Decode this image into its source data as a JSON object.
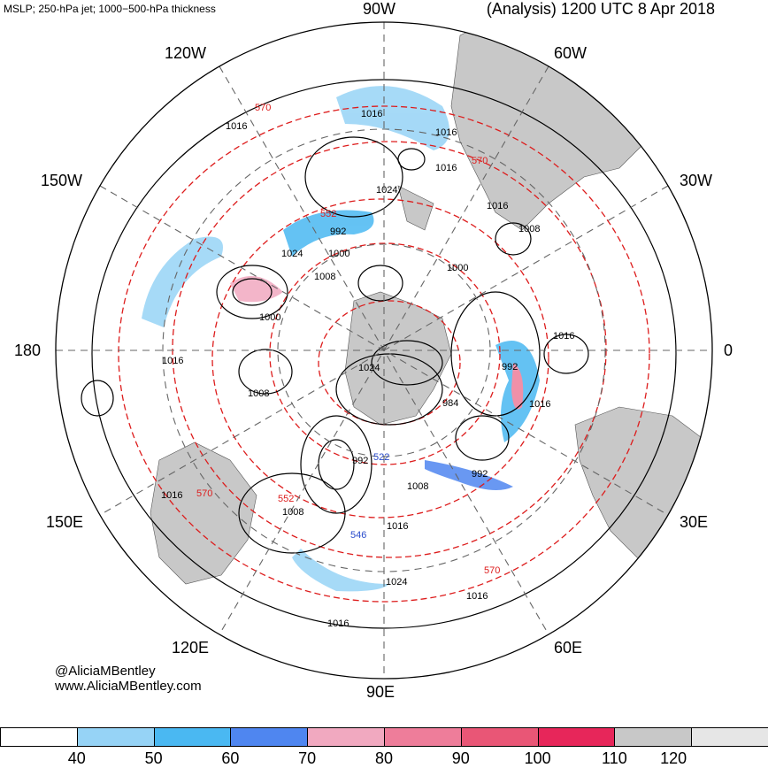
{
  "header": {
    "left_title": "MSLP; 250-hPa jet; 1000−500-hPa thickness",
    "right_title": "(Analysis) 1200 UTC 8 Apr 2018"
  },
  "longitude_labels": {
    "n90w": "90W",
    "n120w": "120W",
    "n60w": "60W",
    "n150w": "150W",
    "n30w": "30W",
    "n180": "180",
    "n0": "0",
    "n150e": "150E",
    "n30e": "30E",
    "n120e": "120E",
    "n60e": "60E",
    "n90e": "90E"
  },
  "credits": {
    "handle": "@AliciaMBentley",
    "website": "www.AliciaMBentley.com"
  },
  "contour_labels": {
    "mslp": [
      "1016",
      "1016",
      "1016",
      "1024",
      "992",
      "1024",
      "1000",
      "1008",
      "1016",
      "1008",
      "1000",
      "1016",
      "1000",
      "1008",
      "1024",
      "1016",
      "992",
      "1016",
      "984",
      "1016",
      "992",
      "992",
      "1008",
      "1008",
      "1016",
      "1016",
      "1024",
      "1016",
      "1016"
    ],
    "thickness": [
      "570",
      "570",
      "552",
      "570",
      "552",
      "570",
      "546",
      "522"
    ]
  },
  "colorbar": {
    "ticks": [
      "40",
      "50",
      "60",
      "70",
      "80",
      "90",
      "100",
      "110",
      "120"
    ],
    "colors": [
      "#ffffff",
      "#96d3f6",
      "#4ab8f2",
      "#4f86f0",
      "#f1a9c0",
      "#ee7d9a",
      "#e95676",
      "#e7265a",
      "#c8c8c8",
      "#e6e6e6"
    ]
  }
}
